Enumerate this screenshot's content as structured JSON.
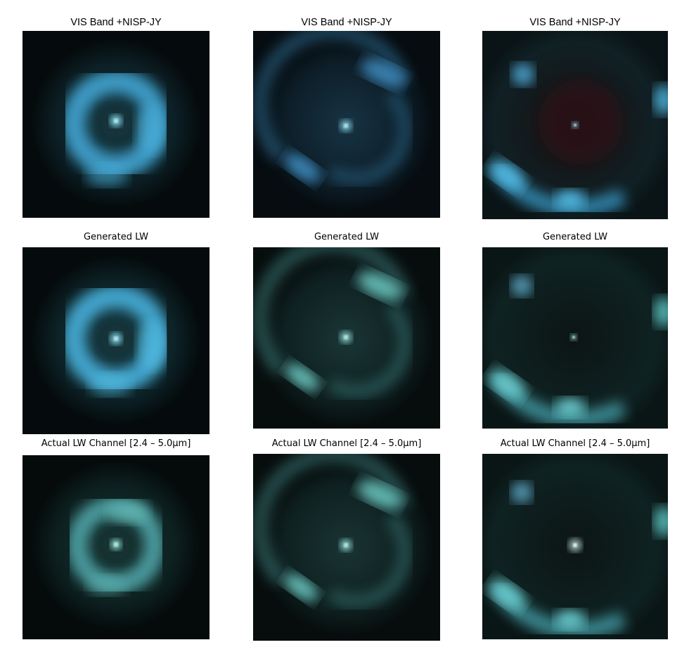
{
  "rows": [
    {
      "title": "VIS Band +NISP-JY"
    },
    {
      "title": "Generated LW"
    },
    {
      "title": "Actual LW Channel [2.4 – 5.0μm]"
    }
  ],
  "columns": [
    {
      "kind": "full-ring"
    },
    {
      "kind": "double-arcs"
    },
    {
      "kind": "wide-arc"
    }
  ],
  "colors": {
    "background": "#ffffff",
    "vis_tint": "#3fa6d8",
    "generated_tint": "#5fc7c7",
    "actual_tint": "#66bdb8",
    "deep_sky": "#050b0d"
  }
}
